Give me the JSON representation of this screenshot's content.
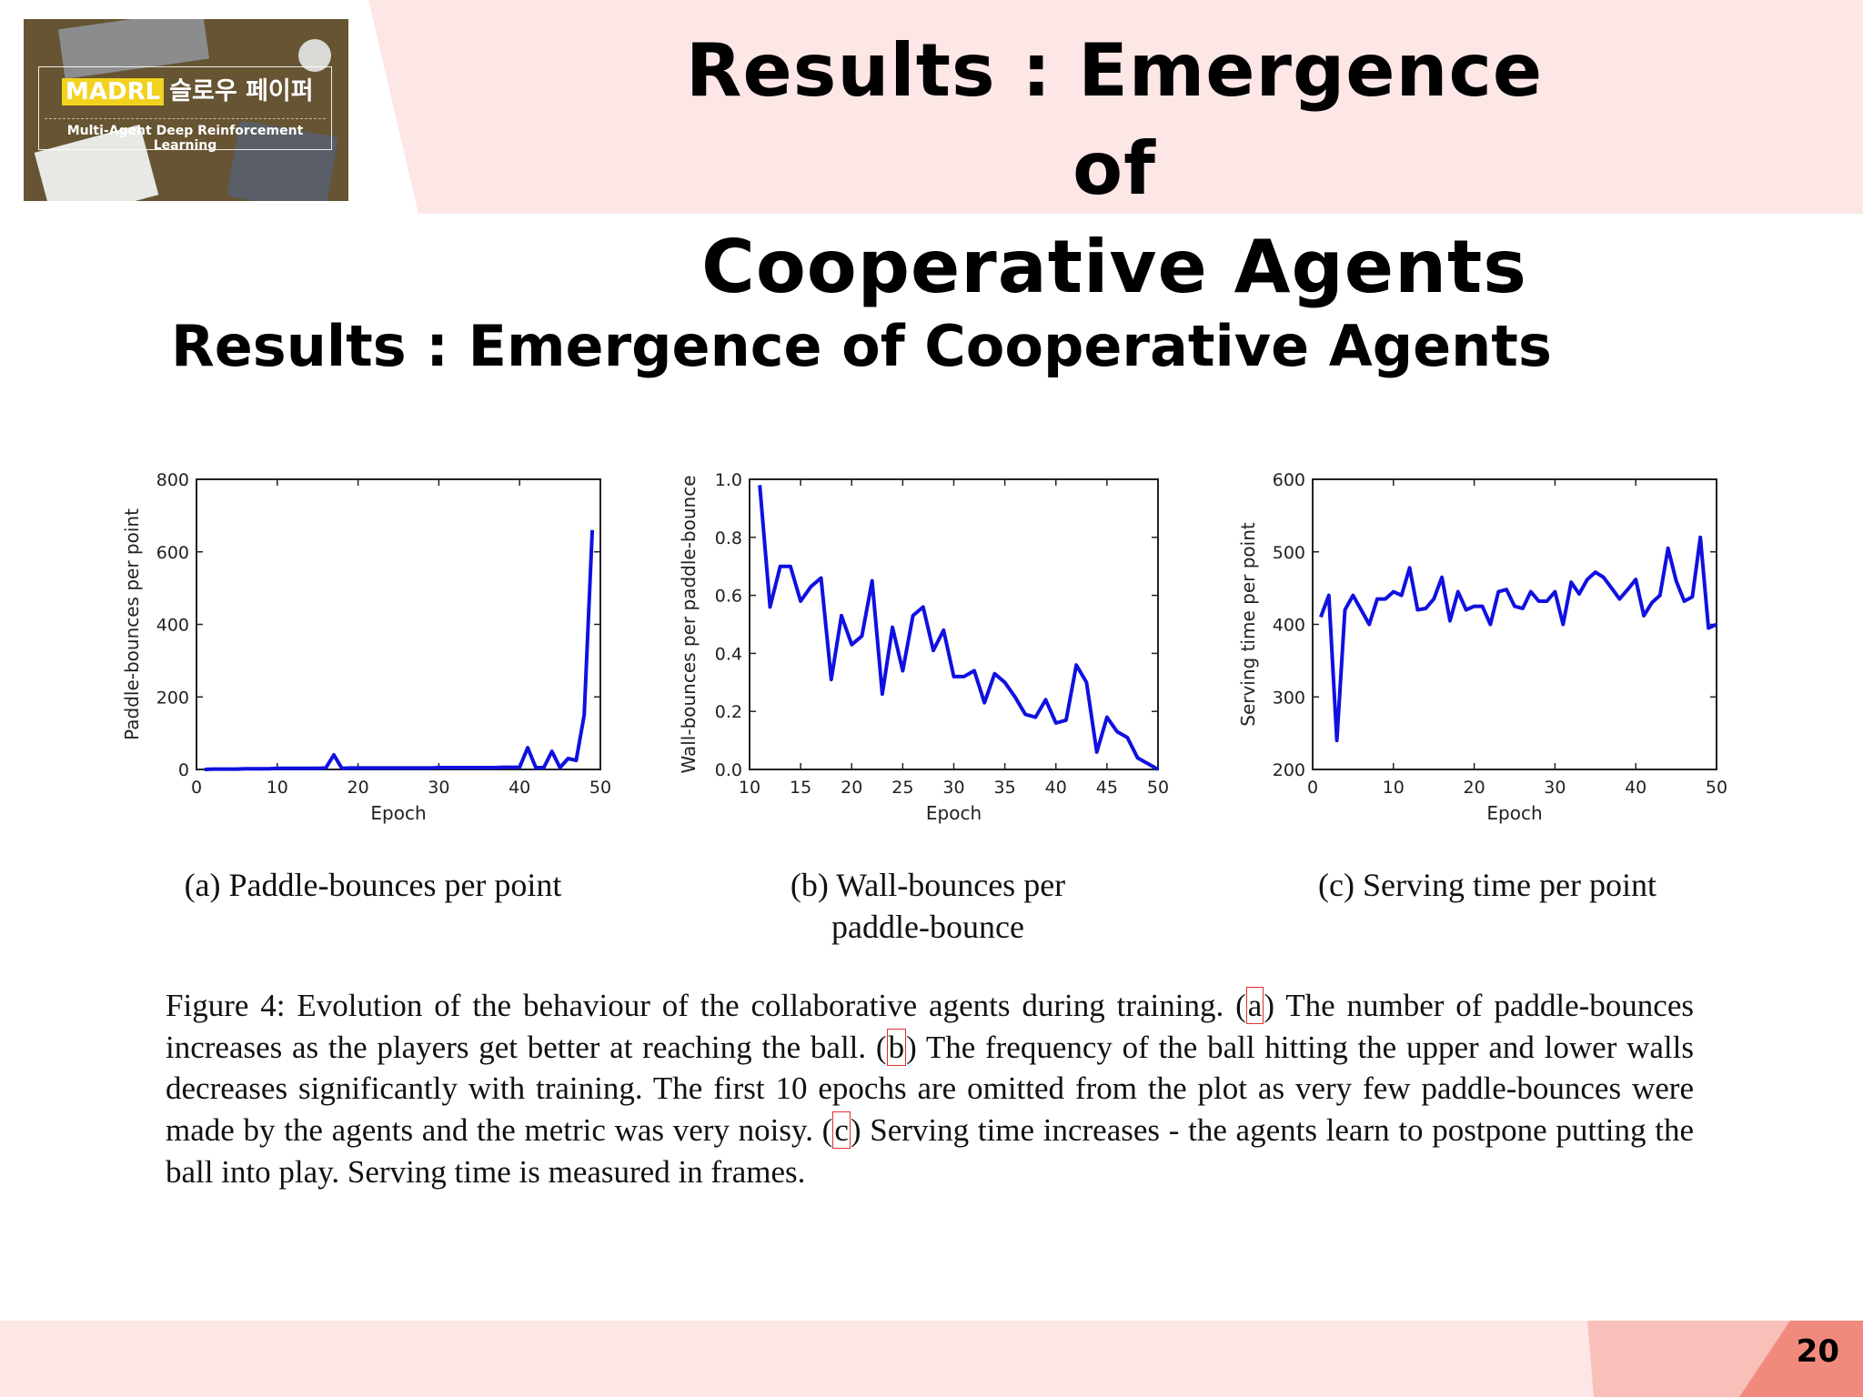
{
  "header": {
    "title_line1": "Results : Emergence of",
    "title_line2": "Cooperative Agents"
  },
  "logo": {
    "brand": "MADRL",
    "korean": "슬로우 페이퍼",
    "subtitle": "Multi-Agent Deep Reinforcement Learning"
  },
  "slide_title": "Results : Emergence of Cooperative Agents",
  "subcaptions": {
    "a": "(a) Paddle-bounces per point",
    "b_line1": "(b) Wall-bounces per",
    "b_line2": "paddle-bounce",
    "c": "(c) Serving time per point"
  },
  "figure_caption": {
    "p1": "Figure 4: Evolution of the behaviour of the collaborative agents during training. (",
    "a": "a",
    "p2": ") The number of paddle-bounces increases as the players get better at reaching the ball. (",
    "b": "b",
    "p3": ") The frequency of the ball hitting the upper and lower walls decreases significantly with training. The first 10 epochs are omitted from the plot as very few paddle-bounces were made by the agents and the metric was very noisy. (",
    "c": "c",
    "p4": ") Serving time increases - the agents learn to postpone putting the ball into play. Serving time is measured in frames."
  },
  "page_number": "20",
  "colors": {
    "header_bg": "#fde6e6",
    "footer_bg": "#fde6e6",
    "accent": "#f4a49a",
    "line": "#1010e0"
  },
  "chart_data": [
    {
      "type": "line",
      "xlabel": "Epoch",
      "ylabel": "Paddle-bounces per point",
      "xlim": [
        0,
        50
      ],
      "ylim": [
        0,
        800
      ],
      "xticks": [
        0,
        10,
        20,
        30,
        40,
        50
      ],
      "yticks": [
        0,
        200,
        400,
        600,
        800
      ],
      "x": [
        1,
        2,
        3,
        4,
        5,
        6,
        7,
        8,
        9,
        10,
        11,
        12,
        13,
        14,
        15,
        16,
        17,
        18,
        19,
        20,
        21,
        22,
        23,
        24,
        25,
        26,
        27,
        28,
        29,
        30,
        31,
        32,
        33,
        34,
        35,
        36,
        37,
        38,
        39,
        40,
        41,
        42,
        43,
        44,
        45,
        46,
        47,
        48,
        49
      ],
      "y": [
        0,
        1,
        1,
        1,
        1,
        2,
        2,
        2,
        2,
        3,
        3,
        3,
        3,
        3,
        3,
        4,
        40,
        3,
        4,
        4,
        4,
        4,
        4,
        4,
        4,
        4,
        4,
        4,
        4,
        5,
        5,
        5,
        5,
        5,
        5,
        5,
        5,
        6,
        6,
        6,
        60,
        5,
        5,
        50,
        5,
        30,
        25,
        150,
        660
      ]
    },
    {
      "type": "line",
      "xlabel": "Epoch",
      "ylabel": "Wall-bounces per paddle-bounce",
      "xlim": [
        10,
        50
      ],
      "ylim": [
        0.0,
        1.0
      ],
      "xticks": [
        10,
        15,
        20,
        25,
        30,
        35,
        40,
        45,
        50
      ],
      "yticks": [
        0.0,
        0.2,
        0.4,
        0.6,
        0.8,
        1.0
      ],
      "x": [
        11,
        12,
        13,
        14,
        15,
        16,
        17,
        18,
        19,
        20,
        21,
        22,
        23,
        24,
        25,
        26,
        27,
        28,
        29,
        30,
        31,
        32,
        33,
        34,
        35,
        36,
        37,
        38,
        39,
        40,
        41,
        42,
        43,
        44,
        45,
        46,
        47,
        48,
        49,
        50
      ],
      "y": [
        0.98,
        0.56,
        0.7,
        0.7,
        0.58,
        0.63,
        0.66,
        0.31,
        0.53,
        0.43,
        0.46,
        0.65,
        0.26,
        0.49,
        0.34,
        0.53,
        0.56,
        0.41,
        0.48,
        0.32,
        0.32,
        0.34,
        0.23,
        0.33,
        0.3,
        0.25,
        0.19,
        0.18,
        0.24,
        0.16,
        0.17,
        0.36,
        0.3,
        0.06,
        0.18,
        0.13,
        0.11,
        0.04,
        0.02,
        0.0
      ]
    },
    {
      "type": "line",
      "xlabel": "Epoch",
      "ylabel": "Serving time per point",
      "xlim": [
        0,
        50
      ],
      "ylim": [
        200,
        600
      ],
      "xticks": [
        0,
        10,
        20,
        30,
        40,
        50
      ],
      "yticks": [
        200,
        300,
        400,
        500,
        600
      ],
      "x": [
        1,
        2,
        3,
        4,
        5,
        6,
        7,
        8,
        9,
        10,
        11,
        12,
        13,
        14,
        15,
        16,
        17,
        18,
        19,
        20,
        21,
        22,
        23,
        24,
        25,
        26,
        27,
        28,
        29,
        30,
        31,
        32,
        33,
        34,
        35,
        36,
        37,
        38,
        39,
        40,
        41,
        42,
        43,
        44,
        45,
        46,
        47,
        48,
        49,
        50
      ],
      "y": [
        410,
        440,
        240,
        420,
        440,
        420,
        400,
        435,
        435,
        445,
        440,
        478,
        420,
        422,
        435,
        465,
        405,
        445,
        420,
        425,
        425,
        400,
        445,
        448,
        425,
        422,
        445,
        432,
        432,
        445,
        400,
        458,
        442,
        462,
        472,
        465,
        450,
        435,
        448,
        462,
        412,
        430,
        440,
        505,
        460,
        432,
        438,
        520,
        395,
        400
      ]
    }
  ]
}
